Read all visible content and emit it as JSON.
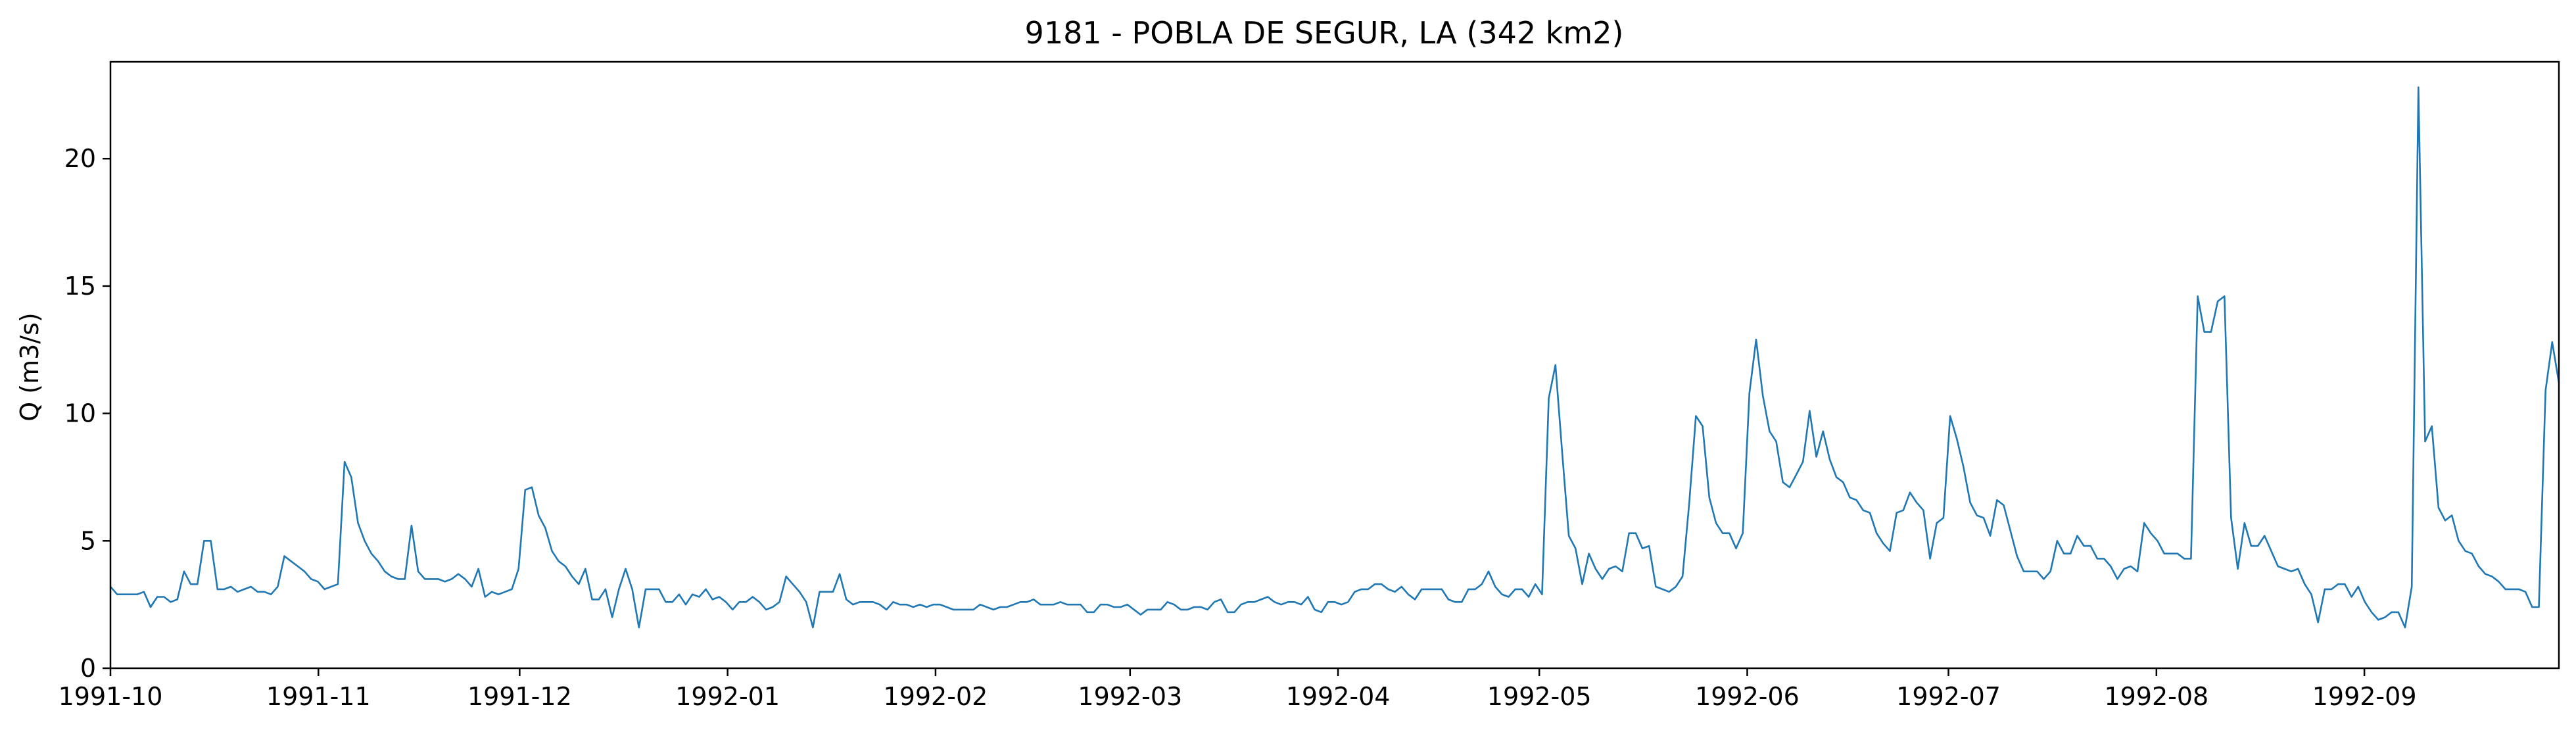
{
  "chart_data": {
    "type": "line",
    "title": "9181 - POBLA DE SEGUR, LA (342 km2)",
    "xlabel": "",
    "ylabel": "Q (m3/s)",
    "x_start": "1991-10-01",
    "x_end": "1992-09-30",
    "ylim": [
      0,
      23.8
    ],
    "y_ticks": [
      0,
      5,
      10,
      15,
      20
    ],
    "x_ticks": [
      {
        "date": "1991-10-01",
        "label": "1991-10"
      },
      {
        "date": "1991-11-01",
        "label": "1991-11"
      },
      {
        "date": "1991-12-01",
        "label": "1991-12"
      },
      {
        "date": "1992-01-01",
        "label": "1992-01"
      },
      {
        "date": "1992-02-01",
        "label": "1992-02"
      },
      {
        "date": "1992-03-01",
        "label": "1992-03"
      },
      {
        "date": "1992-04-01",
        "label": "1992-04"
      },
      {
        "date": "1992-05-01",
        "label": "1992-05"
      },
      {
        "date": "1992-06-01",
        "label": "1992-06"
      },
      {
        "date": "1992-07-01",
        "label": "1992-07"
      },
      {
        "date": "1992-08-01",
        "label": "1992-08"
      },
      {
        "date": "1992-09-01",
        "label": "1992-09"
      }
    ],
    "grid": false,
    "line_color": "#1f77b4",
    "series": [
      {
        "values": [
          3.2,
          2.9,
          2.9,
          2.9,
          2.9,
          3.0,
          2.4,
          2.8,
          2.8,
          2.6,
          2.7,
          3.8,
          3.3,
          3.3,
          5.0,
          5.0,
          3.1,
          3.1,
          3.2,
          3.0,
          3.1,
          3.2,
          3.0,
          3.0,
          2.9,
          3.2,
          4.4,
          4.2,
          4.0,
          3.8,
          3.5,
          3.4,
          3.1,
          3.2,
          3.3,
          8.1,
          7.5,
          5.7,
          5.0,
          4.5,
          4.2,
          3.8,
          3.6,
          3.5,
          3.5,
          5.6,
          3.8,
          3.5,
          3.5,
          3.5,
          3.4,
          3.5,
          3.7,
          3.5,
          3.2,
          3.9,
          2.8,
          3.0,
          2.9,
          3.0,
          3.1,
          3.9,
          7.0,
          7.1,
          6.0,
          5.5,
          4.6,
          4.2,
          4.0,
          3.6,
          3.3,
          3.9,
          2.7,
          2.7,
          3.1,
          2.0,
          3.1,
          3.9,
          3.1,
          1.6,
          3.1,
          3.1,
          3.1,
          2.6,
          2.6,
          2.9,
          2.5,
          2.9,
          2.8,
          3.1,
          2.7,
          2.8,
          2.6,
          2.3,
          2.6,
          2.6,
          2.8,
          2.6,
          2.3,
          2.4,
          2.6,
          3.6,
          3.3,
          3.0,
          2.6,
          1.6,
          3.0,
          3.0,
          3.0,
          3.7,
          2.7,
          2.5,
          2.6,
          2.6,
          2.6,
          2.5,
          2.3,
          2.6,
          2.5,
          2.5,
          2.4,
          2.5,
          2.4,
          2.5,
          2.5,
          2.4,
          2.3,
          2.3,
          2.3,
          2.3,
          2.5,
          2.4,
          2.3,
          2.4,
          2.4,
          2.5,
          2.6,
          2.6,
          2.7,
          2.5,
          2.5,
          2.5,
          2.6,
          2.5,
          2.5,
          2.5,
          2.2,
          2.2,
          2.5,
          2.5,
          2.4,
          2.4,
          2.5,
          2.3,
          2.1,
          2.3,
          2.3,
          2.3,
          2.6,
          2.5,
          2.3,
          2.3,
          2.4,
          2.4,
          2.3,
          2.6,
          2.7,
          2.2,
          2.2,
          2.5,
          2.6,
          2.6,
          2.7,
          2.8,
          2.6,
          2.5,
          2.6,
          2.6,
          2.5,
          2.8,
          2.3,
          2.2,
          2.6,
          2.6,
          2.5,
          2.6,
          3.0,
          3.1,
          3.1,
          3.3,
          3.3,
          3.1,
          3.0,
          3.2,
          2.9,
          2.7,
          3.1,
          3.1,
          3.1,
          3.1,
          2.7,
          2.6,
          2.6,
          3.1,
          3.1,
          3.3,
          3.8,
          3.2,
          2.9,
          2.8,
          3.1,
          3.1,
          2.8,
          3.3,
          2.9,
          10.6,
          11.9,
          8.5,
          5.2,
          4.7,
          3.3,
          4.5,
          3.9,
          3.5,
          3.9,
          4.0,
          3.8,
          5.3,
          5.3,
          4.7,
          4.8,
          3.2,
          3.1,
          3.0,
          3.2,
          3.6,
          6.5,
          9.9,
          9.5,
          6.7,
          5.7,
          5.3,
          5.3,
          4.7,
          5.3,
          10.8,
          12.9,
          10.7,
          9.3,
          8.9,
          7.3,
          7.1,
          7.6,
          8.1,
          10.1,
          8.3,
          9.3,
          8.2,
          7.5,
          7.3,
          6.7,
          6.6,
          6.2,
          6.1,
          5.3,
          4.9,
          4.6,
          6.1,
          6.2,
          6.9,
          6.5,
          6.2,
          4.3,
          5.7,
          5.9,
          9.9,
          9.0,
          7.9,
          6.5,
          6.0,
          5.9,
          5.2,
          6.6,
          6.4,
          5.4,
          4.4,
          3.8,
          3.8,
          3.8,
          3.5,
          3.8,
          5.0,
          4.5,
          4.5,
          5.2,
          4.8,
          4.8,
          4.3,
          4.3,
          4.0,
          3.5,
          3.9,
          4.0,
          3.8,
          5.7,
          5.3,
          5.0,
          4.5,
          4.5,
          4.5,
          4.3,
          4.3,
          14.6,
          13.2,
          13.2,
          14.4,
          14.6,
          5.9,
          3.9,
          5.7,
          4.8,
          4.8,
          5.2,
          4.6,
          4.0,
          3.9,
          3.8,
          3.9,
          3.3,
          2.9,
          1.8,
          3.1,
          3.1,
          3.3,
          3.3,
          2.8,
          3.2,
          2.6,
          2.2,
          1.9,
          2.0,
          2.2,
          2.2,
          1.6,
          3.2,
          22.8,
          8.9,
          9.5,
          6.3,
          5.8,
          6.0,
          5.0,
          4.6,
          4.5,
          4.0,
          3.7,
          3.6,
          3.4,
          3.1,
          3.1,
          3.1,
          3.0,
          2.4,
          2.4,
          10.9,
          12.8,
          11.2
        ]
      }
    ]
  }
}
